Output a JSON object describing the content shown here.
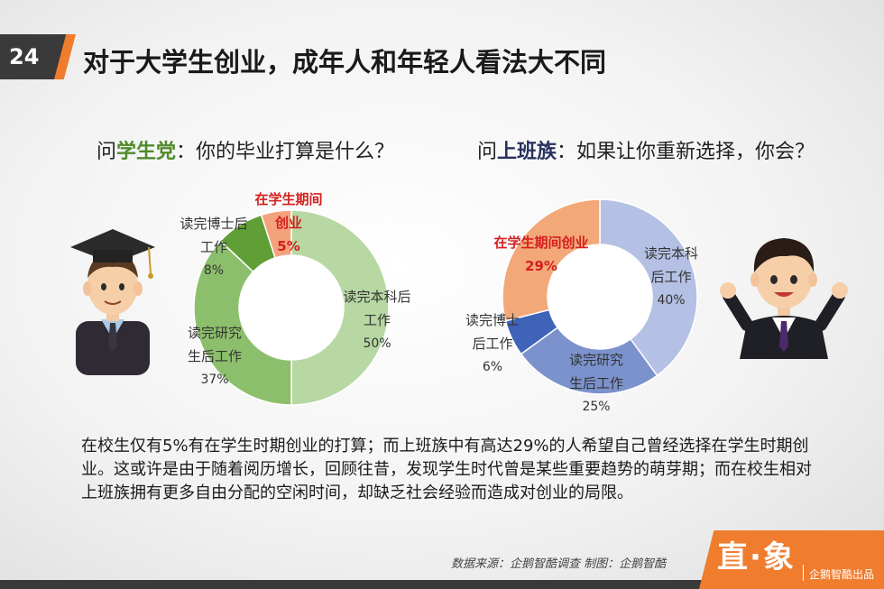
{
  "page_number": "24",
  "title": "对于大学生创业，成年人和年轻人看法大不同",
  "left_question": {
    "prefix": "问",
    "highlight": "学生党",
    "rest": "：你的毕业打算是什么？"
  },
  "right_question": {
    "prefix": "问",
    "highlight": "上班族",
    "rest": "：如果让你重新选择，你会？"
  },
  "chart_data": [
    {
      "type": "pie",
      "variant": "donut",
      "slices": [
        {
          "label_lines": [
            "读完本科后",
            "工作"
          ],
          "pct_text": "50%",
          "value": 50,
          "color": "#b7d8a2"
        },
        {
          "label_lines": [
            "读完研究",
            "生后工作"
          ],
          "pct_text": "37%",
          "value": 37,
          "color": "#8cbf6c"
        },
        {
          "label_lines": [
            "读完博士后",
            "工作"
          ],
          "pct_text": "8%",
          "value": 8,
          "color": "#5f9f35"
        },
        {
          "label_lines": [
            "在学生期间",
            "创业"
          ],
          "pct_text": "5%",
          "value": 5,
          "color": "#f4a27c",
          "emphasis": true
        }
      ]
    },
    {
      "type": "pie",
      "variant": "donut",
      "slices": [
        {
          "label_lines": [
            "读完本科",
            "后工作"
          ],
          "pct_text": "40%",
          "value": 40,
          "color": "#b4c0e4"
        },
        {
          "label_lines": [
            "读完研究",
            "生后工作"
          ],
          "pct_text": "25%",
          "value": 25,
          "color": "#7b92cc"
        },
        {
          "label_lines": [
            "读完博士",
            "后工作"
          ],
          "pct_text": "6%",
          "value": 6,
          "color": "#3e63b8"
        },
        {
          "label_lines": [
            "在学生期间创业"
          ],
          "pct_text": "29%",
          "value": 29,
          "color": "#f2a878",
          "emphasis": true
        }
      ]
    }
  ],
  "body_text": "在校生仅有5%有在学生时期创业的打算；而上班族中有高达29%的人希望自己曾经选择在学生时期创业。这或许是由于随着阅历增长，回顾往昔，发现学生时代曾是某些重要趋势的萌芽期；而在校生相对上班族拥有更多自由分配的空闲时间，却缺乏社会经验而造成对创业的局限。",
  "source": "数据来源：企鹅智酷调查  制图：企鹅智酷",
  "brand": {
    "logo": "直·象",
    "subtitle": "企鹅智酷出品"
  }
}
